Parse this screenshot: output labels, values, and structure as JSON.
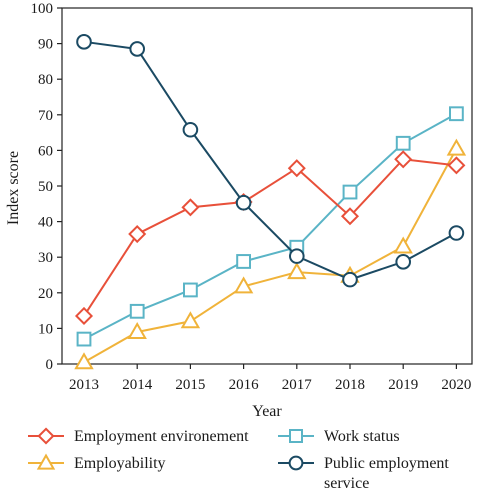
{
  "chart_data": {
    "type": "line",
    "xlabel": "Year",
    "ylabel": "Index score",
    "ylim": [
      0,
      100
    ],
    "yticks": [
      0,
      10,
      20,
      30,
      40,
      50,
      60,
      70,
      80,
      90,
      100
    ],
    "x": [
      "2013",
      "2014",
      "2015",
      "2016",
      "2017",
      "2018",
      "2019",
      "2020"
    ],
    "grid": false,
    "legend_position": "bottom",
    "series": [
      {
        "name": "Employment environement",
        "marker": "diamond",
        "color": "#e8503a",
        "values": [
          13.5,
          36.5,
          44,
          45.5,
          55,
          41.5,
          57.5,
          55.8
        ]
      },
      {
        "name": "Work status",
        "marker": "square",
        "color": "#5ab4c6",
        "values": [
          7,
          14.8,
          20.8,
          28.8,
          32.8,
          48.3,
          62,
          70.3
        ]
      },
      {
        "name": "Employability",
        "marker": "triangle",
        "color": "#f0b33a",
        "values": [
          0.5,
          9,
          12,
          21.8,
          25.8,
          24.8,
          33,
          60.5
        ]
      },
      {
        "name": "Public employment service",
        "marker": "circle",
        "color": "#1b4a63",
        "values": [
          90.5,
          88.5,
          65.8,
          45.3,
          30.3,
          23.7,
          28.7,
          36.8
        ]
      }
    ],
    "legend_second_line": {
      "Public employment service": "service"
    }
  }
}
